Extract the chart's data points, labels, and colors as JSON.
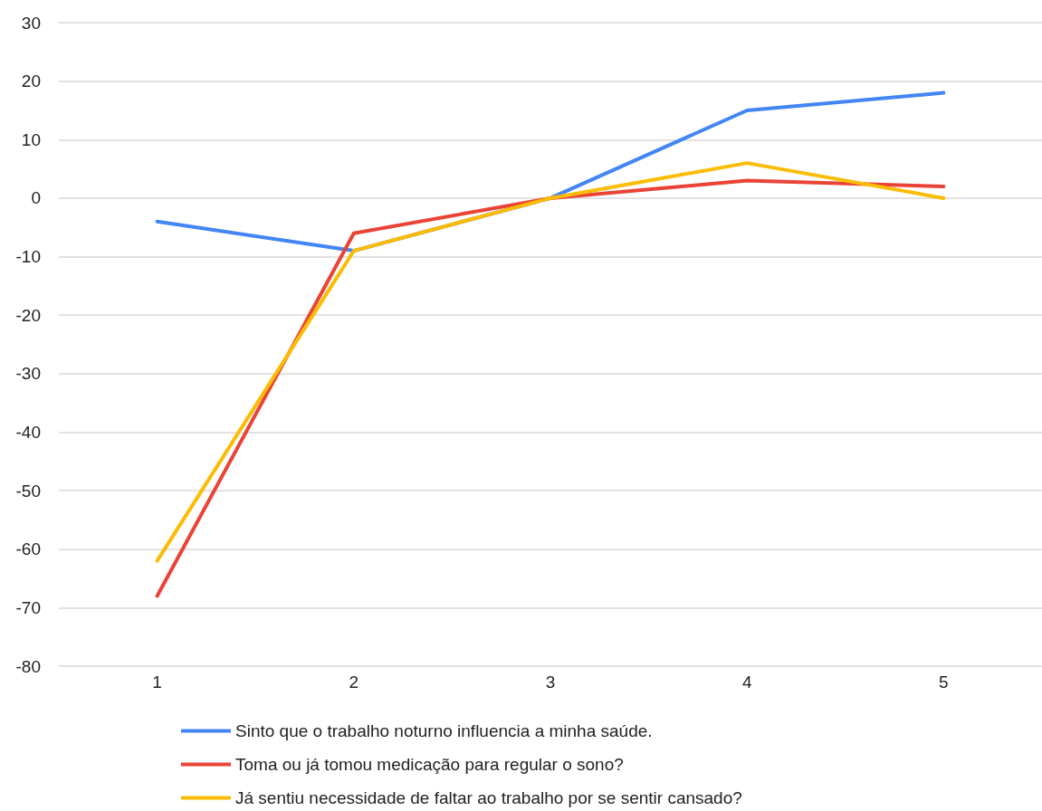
{
  "chart_data": {
    "type": "line",
    "categories": [
      "1",
      "2",
      "3",
      "4",
      "5"
    ],
    "series": [
      {
        "name": "Sinto que o trabalho noturno influencia a minha saúde.",
        "color": "#4285f4",
        "values": [
          -4,
          -9,
          0,
          15,
          18
        ]
      },
      {
        "name": "Toma ou já tomou medicação para regular o sono?",
        "color": "#ea4335",
        "values": [
          -68,
          -6,
          0,
          3,
          2
        ]
      },
      {
        "name": "Já sentiu necessidade de faltar ao trabalho por se sentir cansado?",
        "color": "#fbbc04",
        "values": [
          -62,
          -9,
          0,
          6,
          0
        ]
      }
    ],
    "ylim": [
      -80,
      30
    ],
    "yticks": [
      -80,
      -70,
      -60,
      -50,
      -40,
      -30,
      -20,
      -10,
      0,
      10,
      20,
      30
    ],
    "grid": "y",
    "legend": "bottom",
    "marker": "none",
    "line_style": "solid"
  }
}
